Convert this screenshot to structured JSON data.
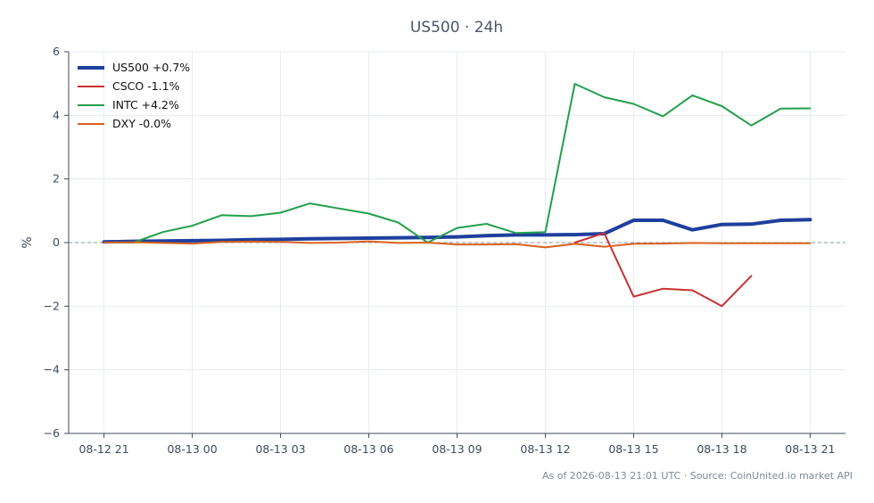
{
  "chart_data": {
    "type": "line",
    "title": "US500 · 24h",
    "ylabel": "%",
    "xlabel": "",
    "ylim": [
      -6,
      6
    ],
    "xlim": [
      -1.2,
      25.2
    ],
    "yticks": [
      -6,
      -4,
      -2,
      0,
      2,
      4,
      6
    ],
    "ytick_labels": [
      "−6",
      "−4",
      "−2",
      "0",
      "2",
      "4",
      "6"
    ],
    "xticks": [
      0,
      3,
      6,
      9,
      12,
      15,
      18,
      21,
      24
    ],
    "xtick_labels": [
      "08-12 21",
      "08-13 00",
      "08-13 03",
      "08-13 06",
      "08-13 09",
      "08-13 12",
      "08-13 15",
      "08-13 18",
      "08-13 21"
    ],
    "grid": true,
    "zero_line": true,
    "legend_position": "top-left",
    "series": [
      {
        "name": "US500 +0.7%",
        "color": "#1f3f9e",
        "width": "thick",
        "x": [
          0,
          1,
          2,
          3,
          4,
          5,
          6,
          7,
          8,
          9,
          10,
          11,
          12,
          13,
          14,
          15,
          16,
          17,
          18,
          19,
          20,
          21,
          22,
          23,
          24
        ],
        "values": [
          0.02,
          0.04,
          0.05,
          0.06,
          0.07,
          0.09,
          0.1,
          0.12,
          0.13,
          0.14,
          0.15,
          0.16,
          0.18,
          0.22,
          0.24,
          0.24,
          0.25,
          0.28,
          0.7,
          0.7,
          0.4,
          0.57,
          0.58,
          0.7,
          0.72
        ]
      },
      {
        "name": "CSCO -1.1%",
        "color": "#c83232",
        "width": "normal",
        "x": [
          16,
          17,
          18,
          19,
          20,
          21,
          22
        ],
        "values": [
          0.0,
          0.3,
          -1.7,
          -1.45,
          -1.5,
          -2.0,
          -1.05
        ]
      },
      {
        "name": "INTC +4.2%",
        "color": "#22a04b",
        "width": "normal",
        "x": [
          0,
          1,
          2,
          3,
          4,
          5,
          6,
          7,
          8,
          9,
          10,
          11,
          12,
          13,
          14,
          15,
          16,
          17,
          18,
          19,
          20,
          21,
          22,
          23,
          24
        ],
        "values": [
          0.0,
          0.0,
          0.33,
          0.53,
          0.86,
          0.83,
          0.94,
          1.23,
          1.07,
          0.91,
          0.63,
          0.0,
          0.46,
          0.59,
          0.3,
          0.33,
          4.99,
          4.57,
          4.36,
          3.97,
          4.63,
          4.29,
          3.68,
          4.21,
          4.22
        ]
      },
      {
        "name": "DXY -0.0%",
        "color": "#d9621e",
        "width": "normal",
        "x": [
          0,
          1,
          2,
          3,
          4,
          5,
          6,
          7,
          8,
          9,
          10,
          11,
          12,
          13,
          14,
          15,
          16,
          17,
          18,
          19,
          20,
          21,
          22,
          23,
          24
        ],
        "values": [
          0.0,
          0.01,
          -0.01,
          -0.03,
          0.02,
          0.03,
          0.02,
          -0.01,
          0.0,
          0.04,
          -0.01,
          0.0,
          -0.06,
          -0.06,
          -0.05,
          -0.15,
          -0.04,
          -0.13,
          -0.04,
          -0.03,
          -0.01,
          -0.02,
          -0.02,
          -0.02,
          -0.02
        ]
      }
    ]
  },
  "footer": "As of 2026-08-13 21:01 UTC · Source: CoinUnited.io market API"
}
